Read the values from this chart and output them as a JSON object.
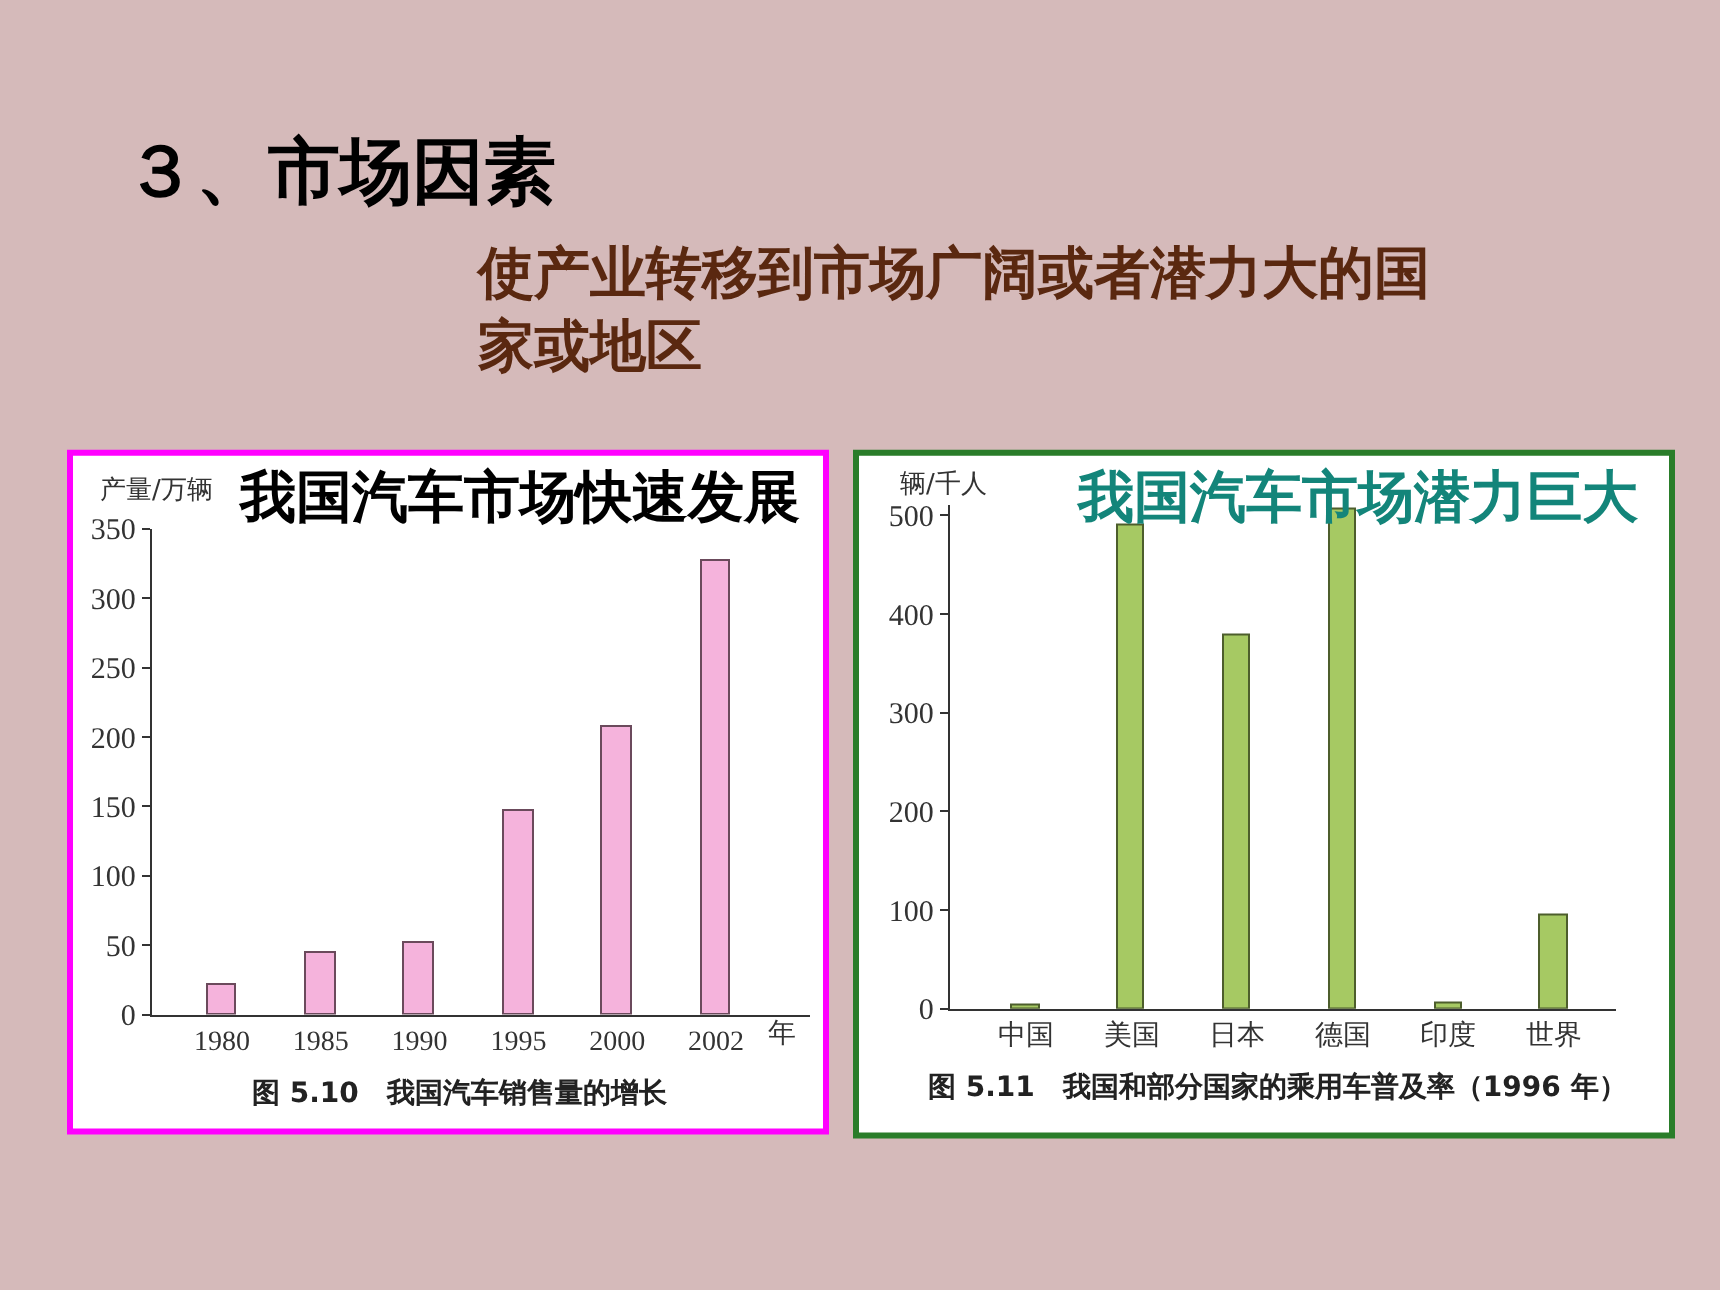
{
  "chart_data": [
    {
      "type": "other",
      "title": "３、市场因素",
      "subtitle": "使产业转移到市场广阔或者潜力大的国家或地区"
    },
    {
      "type": "bar",
      "title": "我国汽车市场快速发展",
      "ylabel": "产量/万辆",
      "xlabel": "年",
      "categories": [
        "1980",
        "1985",
        "1990",
        "1995",
        "2000",
        "2002"
      ],
      "values": [
        22,
        44,
        52,
        147,
        208,
        327
      ],
      "color": "#f5b3dc",
      "ylim": [
        0,
        350
      ],
      "yticks": [
        0,
        50,
        100,
        150,
        200,
        250,
        300,
        350
      ],
      "annotations": [
        "图 5.10　我国汽车销售量的增长"
      ]
    },
    {
      "type": "bar",
      "title": "我国汽车市场潜力巨大",
      "ylabel": "辆/千人",
      "categories": [
        "中国",
        "美国",
        "日本",
        "德国",
        "印度",
        "世界"
      ],
      "values": [
        3,
        490,
        379,
        505,
        6,
        94
      ],
      "color": "#a6c963",
      "ylim": [
        0,
        510
      ],
      "yticks": [
        0,
        100,
        200,
        300,
        400,
        500
      ],
      "annotations": [
        "图 5.11　我国和部分国家的乘用车普及率（1996 年）"
      ]
    }
  ]
}
